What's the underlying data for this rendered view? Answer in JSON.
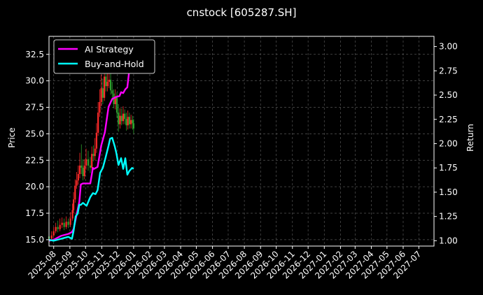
{
  "chart_data": {
    "type": "line",
    "title": "cnstock [605287.SH]",
    "ylabel_left": "Price",
    "ylabel_right": "Return",
    "x_ticks": [
      "2025-08",
      "2025-09",
      "2025-10",
      "2025-11",
      "2025-12",
      "2026-01",
      "2026-02",
      "2026-03",
      "2026-04",
      "2026-05",
      "2026-06",
      "2026-07",
      "2026-08",
      "2026-09",
      "2026-10",
      "2026-11",
      "2026-12",
      "2027-01",
      "2027-02",
      "2027-03",
      "2027-04",
      "2027-05",
      "2027-06",
      "2027-07"
    ],
    "xlim": [
      "2025-07-23",
      "2027-07-30"
    ],
    "ylim_left": [
      14.4,
      34.2
    ],
    "ylim_right": [
      0.945,
      3.105
    ],
    "y_ticks_left": [
      "15.0",
      "17.5",
      "20.0",
      "22.5",
      "25.0",
      "27.5",
      "30.0",
      "32.5"
    ],
    "y_ticks_right": [
      "1.00",
      "1.25",
      "1.50",
      "1.75",
      "2.00",
      "2.25",
      "2.50",
      "2.75",
      "3.00"
    ],
    "grid": true,
    "legend_position": "top-left",
    "colors": {
      "up": "#ff2a2a",
      "down": "#2ea02e",
      "ai": "#ff00ff",
      "bh": "#00ffff"
    },
    "series": [
      {
        "name": "AI Strategy",
        "axis": "right",
        "color": "#ff00ff",
        "x": [
          "2025-07-23",
          "2025-08-01",
          "2025-08-08",
          "2025-08-15",
          "2025-08-22",
          "2025-08-29",
          "2025-09-05",
          "2025-09-08",
          "2025-09-12",
          "2025-09-19",
          "2025-09-22",
          "2025-09-26",
          "2025-10-10",
          "2025-10-15",
          "2025-10-17",
          "2025-10-24",
          "2025-10-31",
          "2025-11-07",
          "2025-11-14",
          "2025-11-21",
          "2025-11-28",
          "2025-12-05",
          "2025-12-08",
          "2025-12-12",
          "2025-12-16",
          "2025-12-20",
          "2025-12-25",
          "2025-12-29",
          "2026-01-01"
        ],
        "values": [
          1.0,
          1.01,
          1.03,
          1.05,
          1.06,
          1.07,
          1.09,
          1.12,
          1.22,
          1.4,
          1.58,
          1.59,
          1.59,
          1.75,
          1.74,
          1.76,
          1.98,
          2.12,
          2.38,
          2.46,
          2.48,
          2.49,
          2.53,
          2.52,
          2.56,
          2.58,
          2.82,
          3.0,
          3.02
        ]
      },
      {
        "name": "Buy-and-Hold",
        "axis": "right",
        "color": "#00ffff",
        "x": [
          "2025-07-23",
          "2025-08-01",
          "2025-08-08",
          "2025-08-15",
          "2025-08-22",
          "2025-08-29",
          "2025-09-05",
          "2025-09-08",
          "2025-09-12",
          "2025-09-16",
          "2025-09-19",
          "2025-09-22",
          "2025-09-26",
          "2025-10-03",
          "2025-10-10",
          "2025-10-15",
          "2025-10-20",
          "2025-10-24",
          "2025-10-29",
          "2025-11-03",
          "2025-11-07",
          "2025-11-14",
          "2025-11-17",
          "2025-11-21",
          "2025-11-26",
          "2025-11-29",
          "2025-12-03",
          "2025-12-08",
          "2025-12-12",
          "2025-12-16",
          "2025-12-20",
          "2025-12-24",
          "2025-12-29",
          "2026-01-01"
        ],
        "values": [
          1.01,
          1.0,
          1.01,
          1.02,
          1.03,
          1.04,
          1.02,
          1.1,
          1.25,
          1.28,
          1.37,
          1.37,
          1.39,
          1.36,
          1.45,
          1.49,
          1.48,
          1.52,
          1.7,
          1.75,
          1.83,
          1.98,
          2.05,
          2.06,
          1.97,
          1.9,
          1.78,
          1.85,
          1.74,
          1.85,
          1.68,
          1.72,
          1.75,
          1.74
        ]
      }
    ],
    "candles": {
      "axis": "left",
      "x": [
        "2025-07-23",
        "2025-07-28",
        "2025-08-01",
        "2025-08-05",
        "2025-08-09",
        "2025-08-13",
        "2025-08-17",
        "2025-08-21",
        "2025-08-25",
        "2025-08-29",
        "2025-09-02",
        "2025-09-06",
        "2025-09-08",
        "2025-09-11",
        "2025-09-14",
        "2025-09-17",
        "2025-09-20",
        "2025-09-23",
        "2025-09-26",
        "2025-09-29",
        "2025-10-02",
        "2025-10-06",
        "2025-10-10",
        "2025-10-13",
        "2025-10-16",
        "2025-10-19",
        "2025-10-22",
        "2025-10-25",
        "2025-10-28",
        "2025-10-31",
        "2025-11-03",
        "2025-11-06",
        "2025-11-09",
        "2025-11-12",
        "2025-11-15",
        "2025-11-18",
        "2025-11-21",
        "2025-11-24",
        "2025-11-27",
        "2025-11-30",
        "2025-12-03",
        "2025-12-06",
        "2025-12-09",
        "2025-12-12",
        "2025-12-15",
        "2025-12-18",
        "2025-12-21",
        "2025-12-24",
        "2025-12-27",
        "2025-12-30",
        "2026-01-01"
      ],
      "open": [
        15.3,
        15.1,
        15.4,
        15.8,
        16.2,
        16.0,
        16.4,
        16.6,
        16.2,
        16.7,
        16.4,
        17.0,
        17.8,
        18.8,
        20.1,
        20.6,
        21.2,
        22.0,
        21.8,
        21.0,
        22.0,
        22.6,
        22.0,
        21.8,
        23.1,
        22.9,
        23.6,
        25.1,
        27.0,
        28.0,
        29.3,
        28.4,
        30.4,
        29.5,
        29.9,
        30.1,
        29.1,
        28.8,
        27.8,
        28.4,
        27.0,
        25.9,
        26.7,
        26.2,
        26.9,
        26.4,
        25.8,
        26.6,
        25.9,
        26.3,
        26.0
      ],
      "close": [
        15.1,
        15.4,
        15.8,
        16.2,
        16.0,
        16.4,
        16.6,
        16.2,
        16.7,
        16.4,
        17.0,
        17.8,
        18.8,
        20.1,
        20.6,
        21.2,
        22.0,
        21.8,
        21.0,
        22.0,
        22.6,
        22.0,
        21.8,
        23.1,
        22.9,
        23.6,
        25.1,
        27.0,
        28.0,
        29.3,
        28.4,
        30.4,
        29.5,
        29.9,
        30.1,
        29.1,
        28.8,
        27.8,
        28.4,
        27.0,
        25.9,
        26.7,
        26.2,
        26.9,
        26.4,
        25.8,
        26.6,
        25.9,
        26.3,
        26.0,
        25.5
      ],
      "high": [
        15.7,
        15.8,
        16.2,
        16.6,
        16.8,
        17.0,
        17.1,
        17.0,
        17.2,
        17.0,
        17.6,
        18.4,
        19.5,
        20.7,
        21.4,
        22.0,
        23.2,
        24.0,
        22.6,
        22.6,
        23.6,
        23.4,
        22.8,
        23.8,
        23.9,
        24.6,
        26.0,
        28.0,
        29.2,
        30.6,
        30.2,
        31.4,
        31.0,
        30.8,
        30.9,
        30.7,
        29.9,
        29.2,
        29.2,
        28.9,
        27.8,
        27.4,
        27.4,
        27.6,
        27.3,
        27.0,
        27.2,
        27.0,
        26.8,
        26.7,
        26.4
      ],
      "low": [
        14.8,
        14.9,
        15.2,
        15.6,
        15.7,
        15.8,
        16.1,
        15.9,
        16.0,
        16.1,
        16.2,
        16.8,
        17.5,
        18.5,
        19.8,
        20.2,
        20.8,
        21.2,
        20.6,
        20.7,
        21.6,
        21.5,
        21.3,
        21.5,
        22.4,
        22.5,
        23.2,
        24.8,
        26.6,
        27.6,
        27.8,
        28.1,
        29.0,
        29.0,
        29.3,
        28.7,
        28.2,
        27.4,
        27.3,
        26.5,
        25.2,
        25.5,
        25.8,
        25.9,
        25.9,
        25.3,
        25.4,
        25.5,
        25.5,
        25.4,
        25.0
      ]
    },
    "legend": [
      {
        "label": "AI Strategy",
        "color": "#ff00ff"
      },
      {
        "label": "Buy-and-Hold",
        "color": "#00ffff"
      }
    ]
  }
}
